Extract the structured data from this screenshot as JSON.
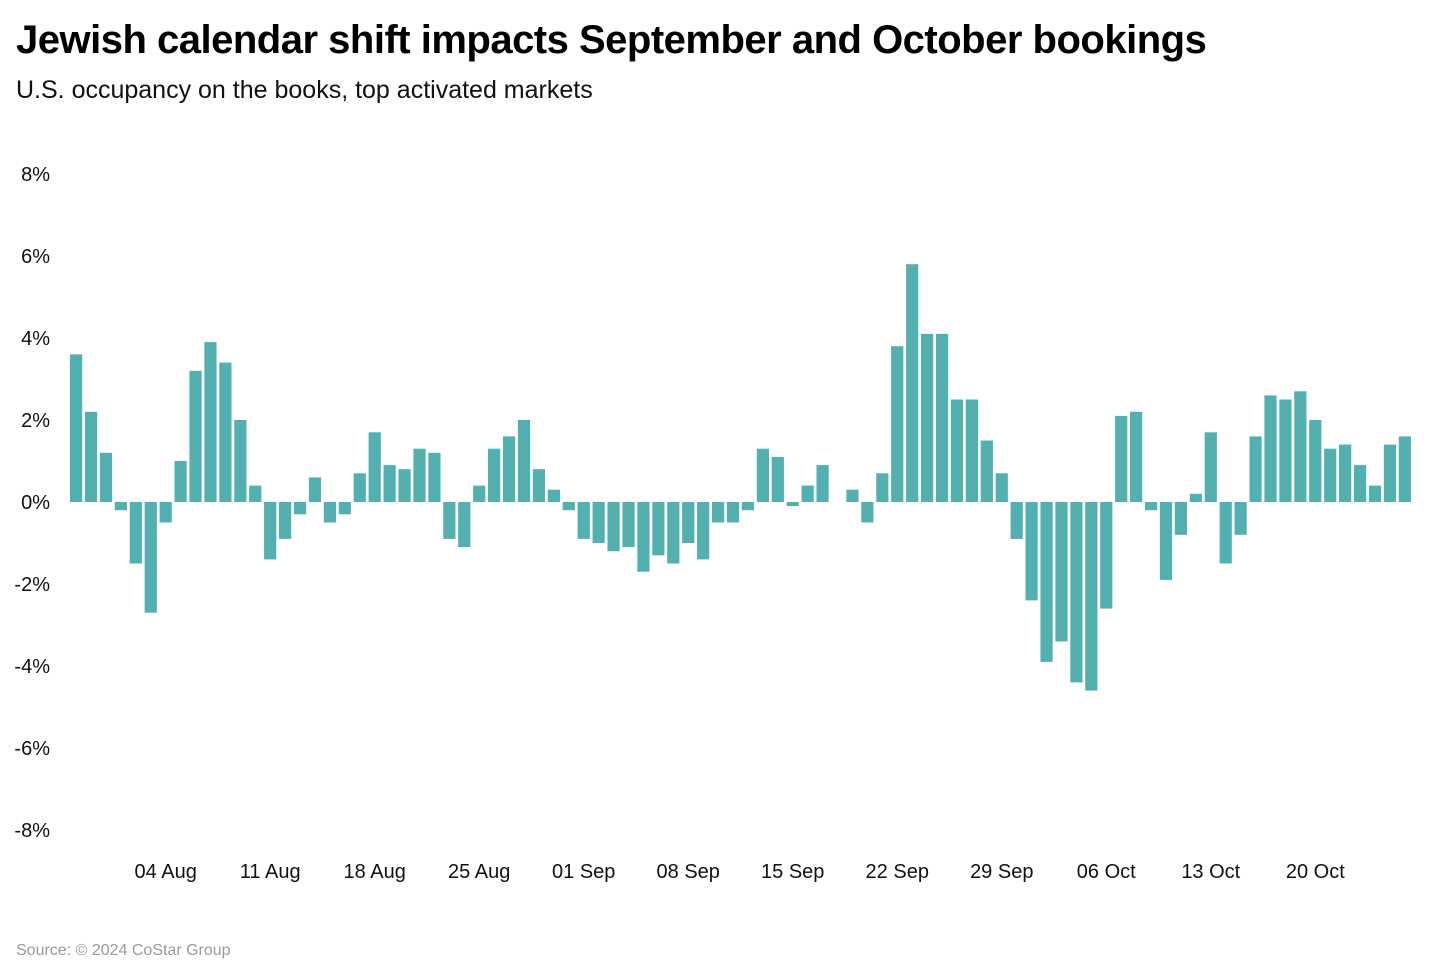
{
  "chart_data": {
    "type": "bar",
    "title": "Jewish calendar shift impacts September and October bookings",
    "subtitle": "U.S. occupancy on the books, top activated markets",
    "xlabel": "",
    "ylabel": "",
    "ylim": [
      -8,
      8
    ],
    "y_ticks": [
      8,
      6,
      4,
      2,
      0,
      -2,
      -4,
      -6,
      -8
    ],
    "y_tick_labels": [
      "8%",
      "6%",
      "4%",
      "2%",
      "0%",
      "-2%",
      "-4%",
      "-6%",
      "-8%"
    ],
    "x_tick_labels": [
      {
        "label": "04 Aug",
        "index": 6
      },
      {
        "label": "11 Aug",
        "index": 13
      },
      {
        "label": "18 Aug",
        "index": 20
      },
      {
        "label": "25 Aug",
        "index": 27
      },
      {
        "label": "01 Sep",
        "index": 34
      },
      {
        "label": "08 Sep",
        "index": 41
      },
      {
        "label": "15 Sep",
        "index": 48
      },
      {
        "label": "22 Sep",
        "index": 55
      },
      {
        "label": "29 Sep",
        "index": 62
      },
      {
        "label": "06 Oct",
        "index": 69
      },
      {
        "label": "13 Oct",
        "index": 76
      },
      {
        "label": "20 Oct",
        "index": 83
      }
    ],
    "series": [
      {
        "name": "Occupancy on the books change (%)",
        "color": "#52b0b0",
        "values": [
          3.6,
          2.2,
          1.2,
          -0.2,
          -1.5,
          -2.7,
          -0.5,
          1.0,
          3.2,
          3.9,
          3.4,
          2.0,
          0.4,
          -1.4,
          -0.9,
          -0.3,
          0.6,
          -0.5,
          -0.3,
          0.7,
          1.7,
          0.9,
          0.8,
          1.3,
          1.2,
          -0.9,
          -1.1,
          0.4,
          1.3,
          1.6,
          2.0,
          0.8,
          0.3,
          -0.2,
          -0.9,
          -1.0,
          -1.2,
          -1.1,
          -1.7,
          -1.3,
          -1.5,
          -1.0,
          -1.4,
          -0.5,
          -0.5,
          -0.2,
          1.3,
          1.1,
          -0.1,
          0.4,
          0.9,
          0.0,
          0.3,
          -0.5,
          0.7,
          3.8,
          5.8,
          4.1,
          4.1,
          2.5,
          2.5,
          1.5,
          0.7,
          -0.9,
          -2.4,
          -3.9,
          -3.4,
          -4.4,
          -4.6,
          -2.6,
          2.1,
          2.2,
          -0.2,
          -1.9,
          -0.8,
          0.2,
          1.7,
          -1.5,
          -0.8,
          1.6,
          2.6,
          2.5,
          2.7,
          2.0,
          1.3,
          1.4,
          0.9,
          0.4,
          1.4,
          1.6
        ]
      }
    ]
  },
  "source": "Source: © 2024 CoStar Group"
}
